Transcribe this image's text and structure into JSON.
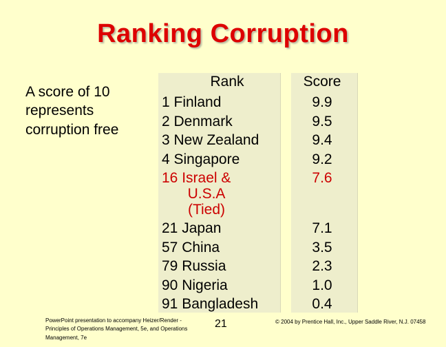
{
  "slide": {
    "title": "Ranking Corruption",
    "side_note": "A score of 10 represents corruption free",
    "table": {
      "rank_header": "Rank",
      "score_header": "Score",
      "rows": [
        {
          "rank_text": "1  Finland",
          "score": "9.9"
        },
        {
          "rank_text": "2  Denmark",
          "score": "9.5"
        },
        {
          "rank_text": "3  New Zealand",
          "score": "9.4"
        },
        {
          "rank_text": "4  Singapore",
          "score": "9.2"
        },
        {
          "rank_text": "16 Israel &",
          "sub_lines": [
            "U.S.A",
            "(Tied)"
          ],
          "score": "7.6"
        },
        {
          "rank_text": "21 Japan",
          "score": "7.1"
        },
        {
          "rank_text": "57 China",
          "score": "3.5"
        },
        {
          "rank_text": "79 Russia",
          "score": "2.3"
        },
        {
          "rank_text": "90 Nigeria",
          "score": "1.0"
        },
        {
          "rank_text": "91 Bangladesh",
          "score": "0.4"
        }
      ]
    },
    "footer": {
      "left": "PowerPoint presentation to accompany Heizer/Render - Principles of Operations Management, 5e, and Operations Management, 7e",
      "page_number": "21",
      "right": "© 2004 by Prentice Hall, Inc., Upper Saddle River, N.J. 07458"
    },
    "colors": {
      "background": "#ffffcc",
      "title": "#dd0000",
      "highlight": "#cc0000"
    }
  }
}
